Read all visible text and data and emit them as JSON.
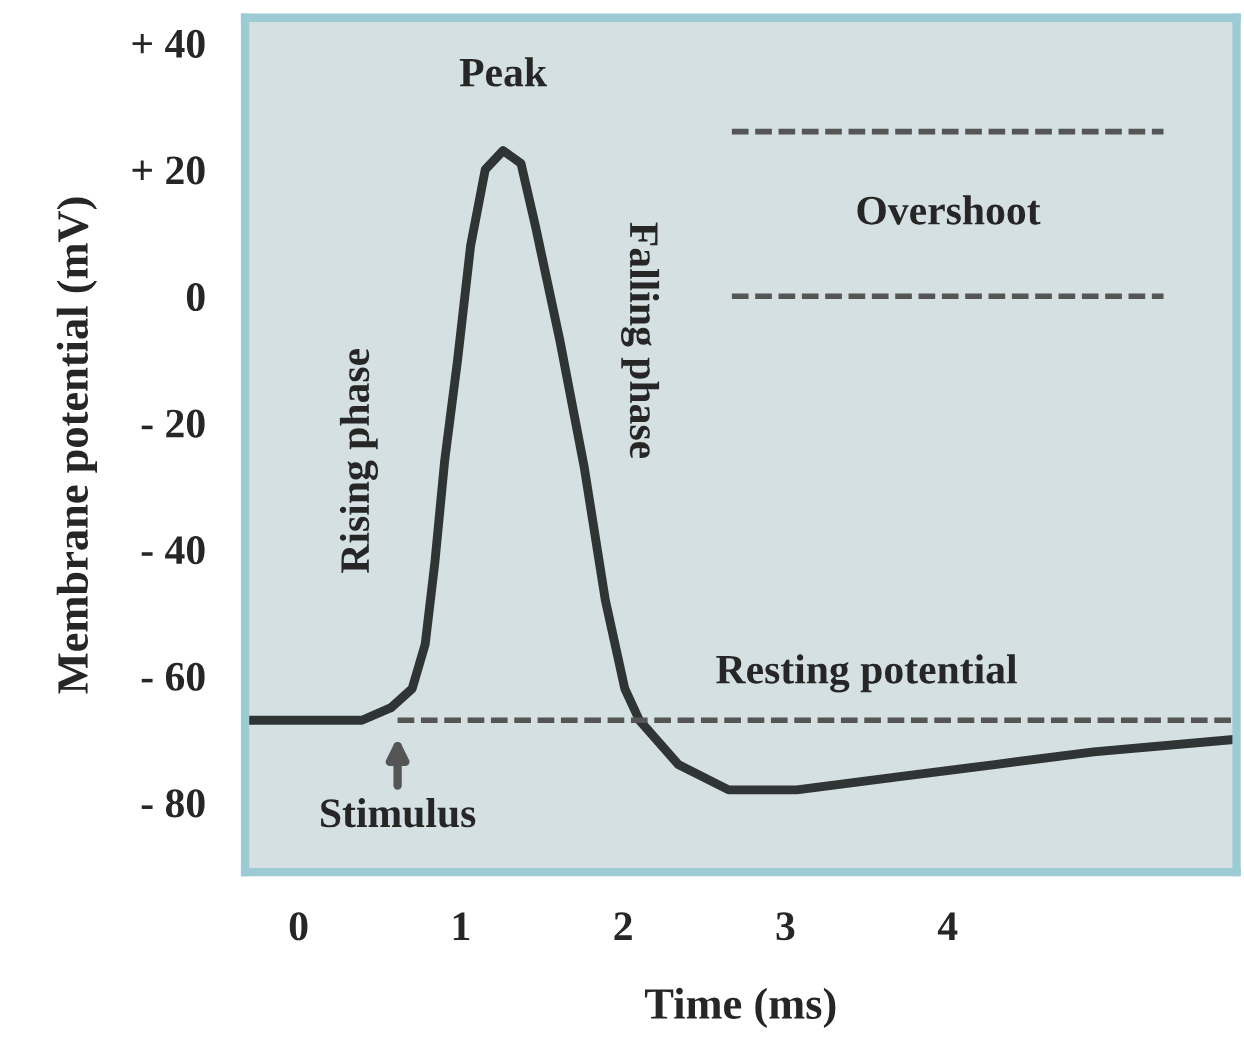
{
  "chart_data": {
    "type": "line",
    "xlabel": "Time (ms)",
    "ylabel": "Membrane potential (mV)",
    "xlim": [
      -0.33,
      5.78
    ],
    "ylim": [
      -91,
      44
    ],
    "xticks": [
      0,
      1,
      2,
      3,
      4
    ],
    "yticks": [
      {
        "value": 40,
        "label": "+ 40"
      },
      {
        "value": 20,
        "label": "+ 20"
      },
      0,
      {
        "value": -20,
        "label": "- 20"
      },
      {
        "value": -40,
        "label": "- 40"
      },
      {
        "value": -60,
        "label": "- 60"
      },
      {
        "value": -80,
        "label": "- 80"
      }
    ],
    "grid": false,
    "series": [
      {
        "color": "#2f3535",
        "line_style": "solid",
        "x": [
          -0.33,
          0.39,
          0.57,
          0.7,
          0.78,
          0.84,
          0.9,
          0.98,
          1.06,
          1.15,
          1.26,
          1.37,
          1.46,
          1.61,
          1.76,
          1.89,
          2.01,
          2.1,
          2.34,
          2.65,
          3.07,
          3.68,
          4.29,
          4.9,
          5.78
        ],
        "values": [
          -67,
          -67,
          -65,
          -62,
          -55,
          -42,
          -26,
          -10,
          8,
          20,
          23,
          21,
          11,
          -7,
          -27,
          -48,
          -62,
          -67,
          -74,
          -78,
          -78,
          -76,
          -74,
          -72,
          -70
        ]
      },
      {
        "color": "#555555",
        "line_style": "dashed",
        "x": [
          2.67,
          5.33
        ],
        "values": [
          26,
          26
        ]
      },
      {
        "color": "#555555",
        "line_style": "dashed",
        "x": [
          2.67,
          5.33
        ],
        "values": [
          0,
          0
        ]
      },
      {
        "color": "#555555",
        "line_style": "dashed",
        "x": [
          0.61,
          5.78
        ],
        "values": [
          -67,
          -67
        ]
      }
    ],
    "annotations": [
      {
        "text": "Peak",
        "x": 1.26,
        "y": 23
      },
      {
        "text": "Rising phase",
        "x": 0.9,
        "y": -26
      },
      {
        "text": "Falling phase",
        "x": 1.61,
        "y": -7
      },
      "Overshoot",
      {
        "text": "Resting potential",
        "x": 3.5,
        "y": -67
      },
      {
        "text": "Stimulus",
        "x": 0.61,
        "y": -67
      }
    ]
  }
}
